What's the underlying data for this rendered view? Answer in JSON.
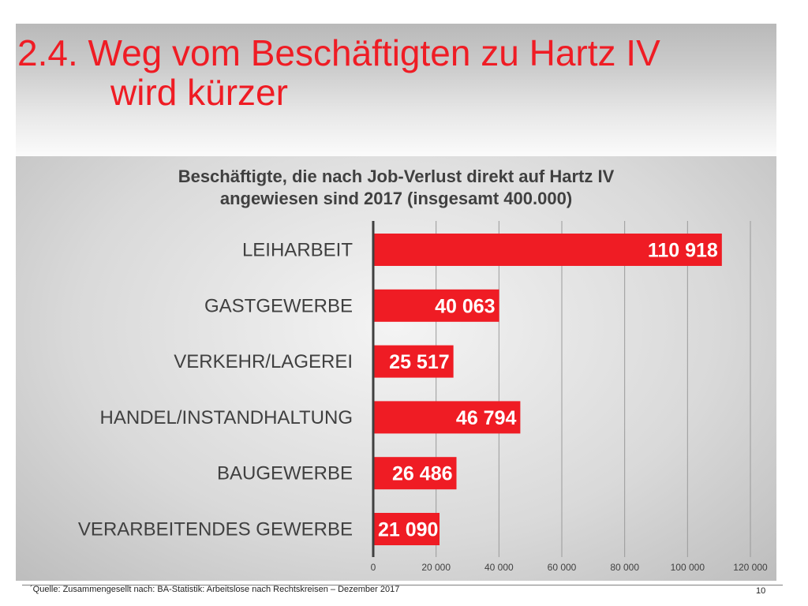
{
  "slide": {
    "title_line1": "2.4. Weg vom Beschäftigten zu Hartz IV",
    "title_line2": "wird kürzer"
  },
  "chart_data": {
    "type": "bar",
    "orientation": "horizontal",
    "title": "Beschäftigte, die nach Job-Verlust direkt auf Hartz IV angewiesen sind 2017 (insgesamt 400.000)",
    "title_line1": "Beschäftigte, die nach Job-Verlust direkt auf Hartz IV",
    "title_line2": "angewiesen sind 2017 (insgesamt 400.000)",
    "categories": [
      "LEIHARBEIT",
      "GASTGEWERBE",
      "VERKEHR/LAGEREI",
      "HANDEL/INSTANDHALTUNG",
      "BAUGEWERBE",
      "VERARBEITENDES GEWERBE"
    ],
    "values": [
      110918,
      40063,
      25517,
      46794,
      26486,
      21090
    ],
    "data_labels": [
      "110 918",
      "40 063",
      "25 517",
      "46 794",
      "26 486",
      "21 090"
    ],
    "xlim": [
      0,
      120000
    ],
    "xticks": [
      0,
      20000,
      40000,
      60000,
      80000,
      100000,
      120000
    ],
    "xtick_labels": [
      "0",
      "20 000",
      "40 000",
      "60 000",
      "80 000",
      "100 000",
      "120 000"
    ],
    "grid": true,
    "bar_color": "#ef1c24",
    "label_color": "#ffffff"
  },
  "footer": {
    "source": "´Quelle: Zusammengesellt nach: BA-Statistik: Arbeitslose nach Rechtskreisen – Dezember 2017",
    "page_number": "10"
  }
}
